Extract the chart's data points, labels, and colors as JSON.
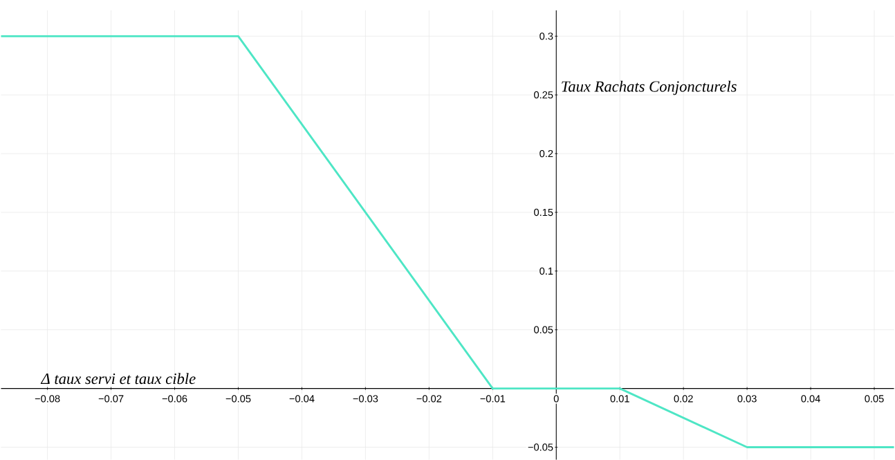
{
  "chart_data": {
    "type": "line",
    "xlabel": "Δ taux servi et taux cible",
    "ylabel": "Taux Rachats Conjoncturels",
    "x": [
      -0.0873,
      -0.05,
      -0.01,
      0.01,
      0.03,
      0.0531
    ],
    "values": [
      0.3,
      0.3,
      0,
      0,
      -0.05,
      -0.05
    ],
    "color": "#4ee6c5",
    "xlim": [
      -0.0873,
      0.0531
    ],
    "ylim": [
      -0.0606,
      0.322
    ],
    "xticks": [
      {
        "value": -0.08,
        "label": "−0.08"
      },
      {
        "value": -0.07,
        "label": "−0.07"
      },
      {
        "value": -0.06,
        "label": "−0.06"
      },
      {
        "value": -0.05,
        "label": "−0.05"
      },
      {
        "value": -0.04,
        "label": "−0.04"
      },
      {
        "value": -0.03,
        "label": "−0.03"
      },
      {
        "value": -0.02,
        "label": "−0.02"
      },
      {
        "value": -0.01,
        "label": "−0.01"
      },
      {
        "value": 0,
        "label": "0"
      },
      0.01,
      0.02,
      0.03,
      0.04,
      0.05
    ],
    "yticks": [
      {
        "value": -0.05,
        "label": "−0.05"
      },
      0.05,
      0.1,
      0.15,
      0.2,
      0.25,
      0.3
    ],
    "grid": true
  }
}
